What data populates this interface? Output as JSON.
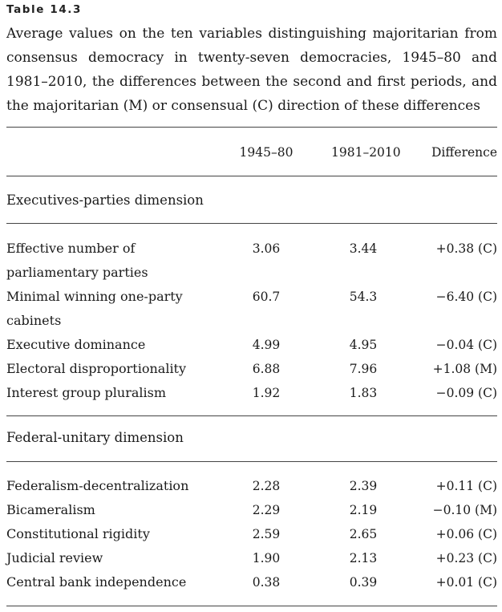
{
  "table": {
    "label": "Table 14.3",
    "caption": "Average values on the ten variables distinguishing majoritarian from consensus democracy in twenty-seven democracies, 1945–80 and 1981–2010, the differences between the second and first periods, and the majoritarian (M) or consensual (C) direction of these differences",
    "columns": [
      "1945–80",
      "1981–2010",
      "Difference"
    ],
    "sections": [
      {
        "title": "Executives-parties dimension",
        "rows": [
          {
            "label": "Effective number of parliamentary parties",
            "v1": "3.06",
            "v2": "3.44",
            "diff": "+0.38 (C)"
          },
          {
            "label": "Minimal winning one-party cabinets",
            "v1": "60.7",
            "v2": "54.3",
            "diff": "−6.40 (C)"
          },
          {
            "label": "Executive dominance",
            "v1": "4.99",
            "v2": "4.95",
            "diff": "−0.04 (C)"
          },
          {
            "label": "Electoral disproportionality",
            "v1": "6.88",
            "v2": "7.96",
            "diff": "+1.08 (M)"
          },
          {
            "label": "Interest group pluralism",
            "v1": "1.92",
            "v2": "1.83",
            "diff": "−0.09 (C)"
          }
        ]
      },
      {
        "title": "Federal-unitary dimension",
        "rows": [
          {
            "label": "Federalism-decentralization",
            "v1": "2.28",
            "v2": "2.39",
            "diff": "+0.11 (C)"
          },
          {
            "label": "Bicameralism",
            "v1": "2.29",
            "v2": "2.19",
            "diff": "−0.10 (M)"
          },
          {
            "label": "Constitutional rigidity",
            "v1": "2.59",
            "v2": "2.65",
            "diff": "+0.06 (C)"
          },
          {
            "label": "Judicial review",
            "v1": "1.90",
            "v2": "2.13",
            "diff": "+0.23 (C)"
          },
          {
            "label": "Central bank independence",
            "v1": "0.38",
            "v2": "0.39",
            "diff": "+0.01 (C)"
          }
        ]
      }
    ]
  }
}
